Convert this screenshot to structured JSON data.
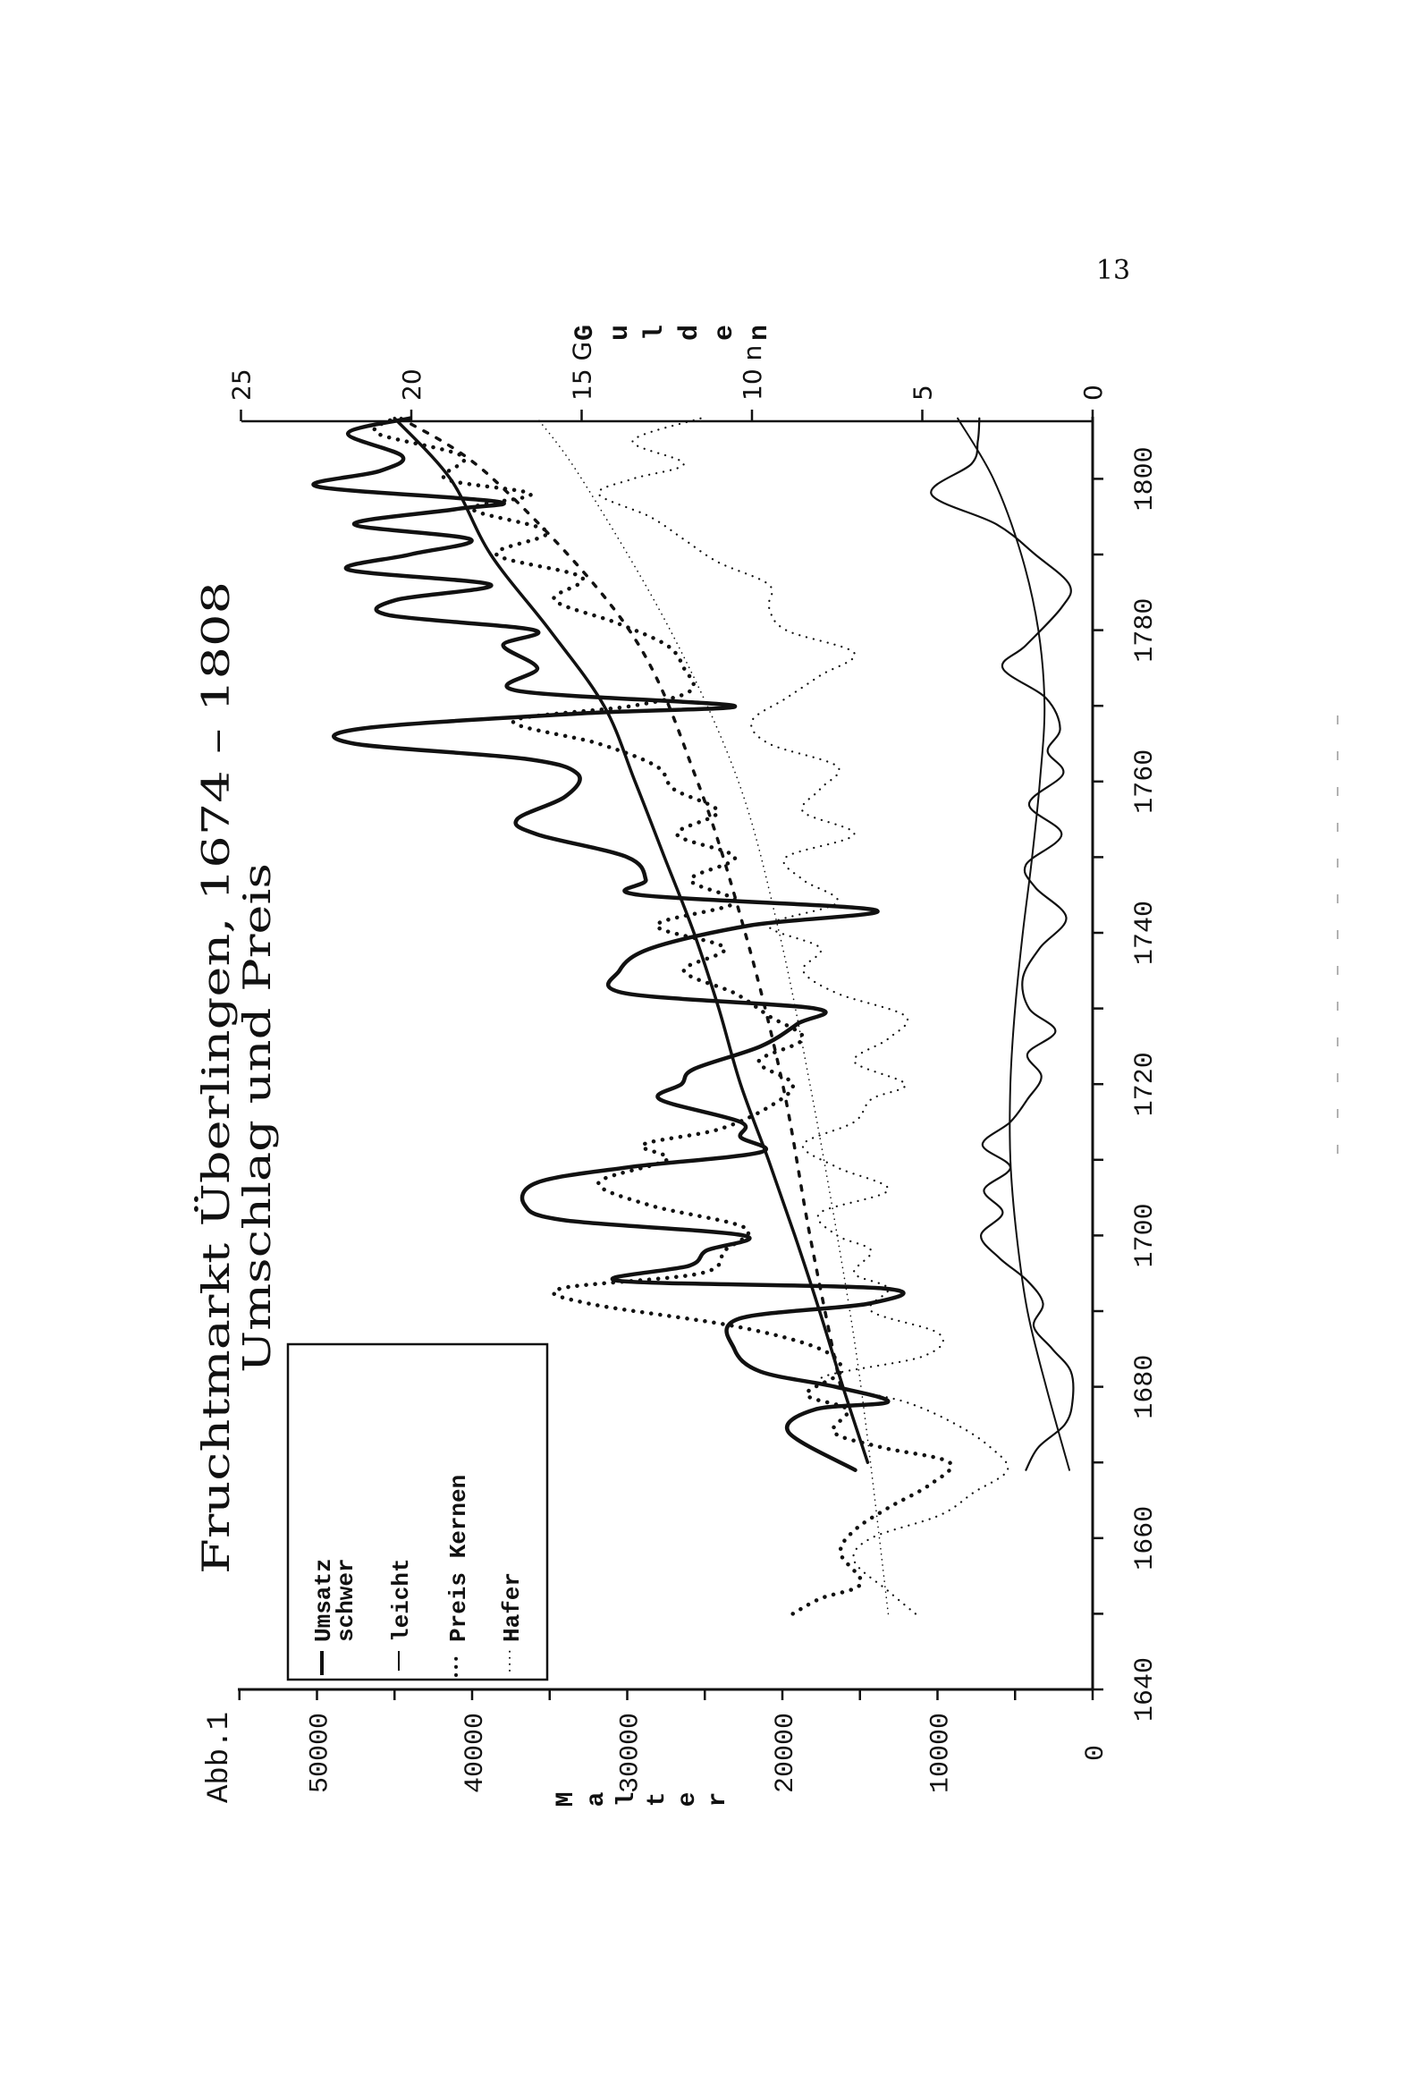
{
  "page": {
    "figure_label": "Abb.1",
    "page_number": "13"
  },
  "chart_data": {
    "type": "line",
    "title": "Fruchtmarkt Überlingen, 1674 – 1808",
    "subtitle": "Umschlag und Preis",
    "xlabel": "",
    "ylabel_left": "Malter",
    "ylabel_left_letters": [
      "M",
      "a",
      "l",
      "t",
      "e",
      "r"
    ],
    "ylabel_right": "Gulden",
    "ylabel_right_letters": [
      "G",
      "u",
      "l",
      "d",
      "e",
      "n"
    ],
    "xlim": [
      1640,
      1808
    ],
    "ylim_left": [
      0,
      55000
    ],
    "ylim_right": [
      0,
      25
    ],
    "x_ticks": [
      "1640",
      "1660",
      "1680",
      "1700",
      "1720",
      "1740",
      "1760",
      "1780",
      "1800"
    ],
    "x_tick_values": [
      1640,
      1660,
      1680,
      1700,
      1720,
      1740,
      1760,
      1780,
      1800
    ],
    "y_left_ticks": [
      "0",
      "10000",
      "20000",
      "30000",
      "40000",
      "50000"
    ],
    "y_left_tick_values": [
      0,
      10000,
      20000,
      30000,
      40000,
      50000
    ],
    "y_right_ticks": [
      "0",
      "5",
      "10 n",
      "15 G",
      "20",
      "25"
    ],
    "y_right_tick_values": [
      0,
      5,
      10,
      15,
      20,
      25
    ],
    "grid": false,
    "legend_position": "top-left",
    "legend": [
      {
        "line1": "Umsatz",
        "line2": "schwer",
        "style": "solid-thick"
      },
      {
        "line1": "leicht",
        "line2": "",
        "style": "solid-thin"
      },
      {
        "line1": "Preis Kernen",
        "line2": "",
        "style": "dotted-heavy"
      },
      {
        "line1": "Hafer",
        "line2": "",
        "style": "dotted-light"
      }
    ],
    "series": [
      {
        "name": "Umsatz schwer",
        "axis": "left",
        "style": "solid-thick",
        "x": [
          1669,
          1674,
          1677,
          1678,
          1680,
          1682,
          1685,
          1689,
          1691,
          1693,
          1694,
          1696,
          1698,
          1700,
          1702,
          1704,
          1707,
          1709,
          1711,
          1713,
          1715,
          1718,
          1720,
          1722,
          1725,
          1728,
          1730,
          1732,
          1735,
          1738,
          1741,
          1743,
          1745,
          1747,
          1750,
          1753,
          1755,
          1758,
          1761,
          1763,
          1765,
          1767,
          1769,
          1770,
          1772,
          1775,
          1778,
          1780,
          1782,
          1784,
          1786,
          1788,
          1790,
          1792,
          1794,
          1796,
          1797,
          1799,
          1801,
          1803,
          1806,
          1808
        ],
        "y": [
          15300,
          19600,
          17900,
          13200,
          16600,
          21400,
          23100,
          22800,
          14400,
          13500,
          30500,
          26000,
          24900,
          22500,
          34000,
          36600,
          35800,
          30000,
          21400,
          22700,
          22700,
          27900,
          26500,
          25700,
          21400,
          19000,
          17900,
          30100,
          30500,
          28400,
          22000,
          14000,
          29200,
          28800,
          30000,
          35800,
          37100,
          34000,
          33200,
          36600,
          47600,
          47100,
          33000,
          23100,
          37100,
          35800,
          38000,
          36000,
          45400,
          44900,
          38800,
          48000,
          44000,
          40100,
          47600,
          41000,
          38400,
          50000,
          46000,
          44500,
          48000,
          44000
        ]
      },
      {
        "name": "Umsatz schwer Trend",
        "axis": "left",
        "style": "trend-thick",
        "x": [
          1670,
          1680,
          1690,
          1700,
          1710,
          1720,
          1730,
          1740,
          1750,
          1760,
          1770,
          1780,
          1790,
          1800,
          1808
        ],
        "y": [
          14500,
          16100,
          17600,
          19200,
          20900,
          22700,
          24100,
          25700,
          27600,
          29500,
          31500,
          35000,
          38800,
          41400,
          45000
        ]
      },
      {
        "name": "leicht",
        "axis": "left",
        "style": "solid-thin",
        "x": [
          1669,
          1672,
          1675,
          1678,
          1682,
          1685,
          1688,
          1691,
          1694,
          1697,
          1700,
          1703,
          1706,
          1709,
          1712,
          1715,
          1718,
          1721,
          1724,
          1727,
          1730,
          1734,
          1738,
          1742,
          1746,
          1749,
          1753,
          1757,
          1761,
          1764,
          1767,
          1771,
          1775,
          1778,
          1783,
          1786,
          1790,
          1794,
          1798,
          1802,
          1805,
          1808
        ],
        "y": [
          4300,
          3500,
          1800,
          1300,
          1400,
          2600,
          3800,
          3200,
          4200,
          6000,
          7200,
          5800,
          7000,
          5300,
          7100,
          5300,
          4200,
          3300,
          4200,
          2400,
          4100,
          4500,
          3400,
          1700,
          3700,
          4300,
          2000,
          4100,
          1900,
          2900,
          2100,
          3000,
          5800,
          4300,
          2000,
          1500,
          3700,
          6200,
          10400,
          7800,
          7400,
          7300
        ]
      },
      {
        "name": "leicht Trend",
        "axis": "left",
        "style": "trend-thin",
        "x": [
          1669,
          1680,
          1690,
          1700,
          1710,
          1720,
          1730,
          1740,
          1750,
          1760,
          1770,
          1780,
          1790,
          1800,
          1808
        ],
        "y": [
          1500,
          3000,
          4200,
          4900,
          5300,
          5300,
          5000,
          4500,
          3900,
          3400,
          3100,
          3500,
          4600,
          6400,
          8700
        ]
      },
      {
        "name": "Preis Kernen",
        "axis": "right",
        "style": "dotted-heavy",
        "x": [
          1650,
          1652,
          1654,
          1658,
          1661,
          1664,
          1667,
          1670,
          1672,
          1674,
          1677,
          1679,
          1682,
          1685,
          1688,
          1691,
          1693,
          1695,
          1698,
          1701,
          1704,
          1707,
          1710,
          1712,
          1714,
          1717,
          1720,
          1723,
          1726,
          1729,
          1732,
          1735,
          1738,
          1741,
          1744,
          1747,
          1750,
          1753,
          1756,
          1759,
          1762,
          1765,
          1768,
          1770,
          1772,
          1775,
          1778,
          1781,
          1784,
          1787,
          1790,
          1793,
          1796,
          1798,
          1800,
          1803,
          1806,
          1808
        ],
        "y": [
          8.8,
          8.0,
          6.8,
          7.4,
          7.0,
          6.0,
          4.8,
          4.2,
          6.2,
          7.6,
          7.2,
          8.4,
          7.4,
          8.0,
          10.5,
          14.8,
          15.6,
          11.5,
          10.8,
          10.2,
          13.0,
          14.5,
          12.5,
          13.2,
          11.0,
          9.5,
          8.8,
          9.8,
          8.5,
          9.5,
          10.5,
          12.0,
          10.8,
          12.8,
          10.5,
          11.8,
          10.5,
          12.2,
          11.0,
          12.3,
          12.8,
          14.5,
          17.0,
          13.5,
          11.8,
          12.0,
          12.5,
          14.0,
          15.8,
          15.0,
          17.5,
          16.0,
          18.2,
          16.5,
          19.0,
          18.5,
          21.0,
          20.5
        ]
      },
      {
        "name": "Preis Kernen Trend",
        "axis": "right",
        "style": "dashed-heavy",
        "x": [
          1680,
          1700,
          1720,
          1740,
          1760,
          1780,
          1800,
          1808
        ],
        "y": [
          7.4,
          8.3,
          9.1,
          10.2,
          11.6,
          13.6,
          17.6,
          20.3
        ]
      },
      {
        "name": "Hafer",
        "axis": "right",
        "style": "dotted-light",
        "x": [
          1650,
          1653,
          1657,
          1660,
          1663,
          1666,
          1669,
          1672,
          1675,
          1678,
          1681,
          1684,
          1687,
          1690,
          1693,
          1695,
          1698,
          1700,
          1703,
          1706,
          1709,
          1712,
          1715,
          1718,
          1720,
          1723,
          1726,
          1729,
          1732,
          1735,
          1738,
          1741,
          1744,
          1747,
          1750,
          1753,
          1756,
          1759,
          1762,
          1765,
          1768,
          1771,
          1774,
          1777,
          1780,
          1783,
          1786,
          1789,
          1792,
          1795,
          1798,
          1800,
          1802,
          1805,
          1808
        ],
        "y": [
          5.2,
          6.0,
          7.0,
          6.5,
          4.5,
          3.5,
          2.5,
          3.0,
          4.0,
          5.5,
          8.0,
          5.0,
          4.5,
          6.5,
          6.0,
          7.0,
          6.5,
          7.5,
          8.0,
          6.0,
          7.5,
          8.5,
          7.0,
          6.5,
          5.5,
          7.0,
          6.0,
          5.5,
          7.5,
          8.5,
          8.0,
          9.5,
          7.5,
          8.5,
          9.0,
          7.0,
          8.5,
          8.0,
          7.5,
          9.5,
          10.0,
          9.0,
          8.0,
          7.0,
          9.0,
          9.5,
          9.5,
          11.0,
          12.0,
          13.0,
          14.5,
          13.5,
          12.0,
          13.5,
          11.5
        ]
      },
      {
        "name": "Hafer Trend",
        "axis": "right",
        "style": "dotted-fine",
        "x": [
          1650,
          1680,
          1700,
          1720,
          1740,
          1760,
          1780,
          1800,
          1808
        ],
        "y": [
          6.0,
          6.8,
          7.5,
          8.3,
          9.2,
          10.4,
          12.4,
          15.0,
          16.3
        ]
      }
    ]
  },
  "colors": {
    "ink": "#111111",
    "paper": "#ffffff"
  }
}
